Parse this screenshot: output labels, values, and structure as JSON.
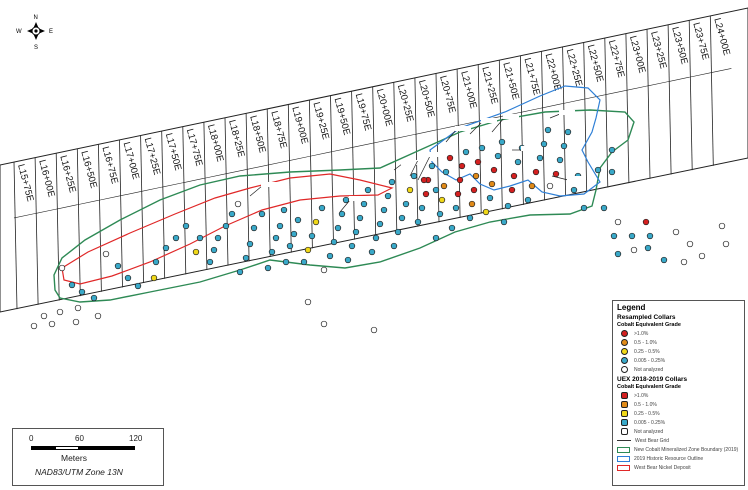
{
  "north_arrow": {
    "n": "N",
    "s": "S",
    "e": "E",
    "w": "W"
  },
  "grid_lines": [
    "L15+75E",
    "L16+00E",
    "L16+25E",
    "L16+50E",
    "L16+75E",
    "L17+00E",
    "L17+25E",
    "L17+50E",
    "L17+75E",
    "L18+00E",
    "L18+25E",
    "L18+50E",
    "L18+75E",
    "L19+00E",
    "L19+25E",
    "L19+50E",
    "L19+75E",
    "L20+00E",
    "L20+25E",
    "L20+50E",
    "L20+75E",
    "L21+00E",
    "L21+25E",
    "L21+50E",
    "L21+75E",
    "L22+00E",
    "L22+25E",
    "L22+50E",
    "L22+75E",
    "L23+00E",
    "L23+25E",
    "L23+50E",
    "L23+75E",
    "L24+00E"
  ],
  "colors": {
    "collar_gt1": "#d42020",
    "collar_05_1": "#e08a18",
    "collar_025_05": "#f0d818",
    "collar_0005_025": "#39a9c9",
    "collar_not_analyzed": "#ffffff",
    "green_boundary": "#2e8a55",
    "blue_boundary": "#2e7fd6",
    "red_boundary": "#e02828"
  },
  "legend": {
    "title": "Legend",
    "resampled": {
      "title": "Resampled Collars",
      "subtitle": "Cobalt Equivalent Grade",
      "items": [
        ">1.0%",
        "0.5 - 1.0%",
        "0.25 - 0.5%",
        "0.005 - 0.25%",
        "Not analyzed"
      ]
    },
    "uex": {
      "title": "UEX 2018-2019 Collars",
      "subtitle": "Cobalt Equivalent Grade",
      "items": [
        ">1.0%",
        "0.5 - 1.0%",
        "0.25 - 0.5%",
        "0.005 - 0.25%",
        "Not analyzed"
      ]
    },
    "lines": [
      "West Bear Grid",
      "New Cobalt Mineralized Zone Boundary (2019)",
      "2019 Historic Resource Outline",
      "West Bear Nickel Deposit"
    ]
  },
  "scale": {
    "ticks": [
      "0",
      "60",
      "120"
    ],
    "units": "Meters",
    "projection": "NAD83/UTM Zone 13N"
  }
}
